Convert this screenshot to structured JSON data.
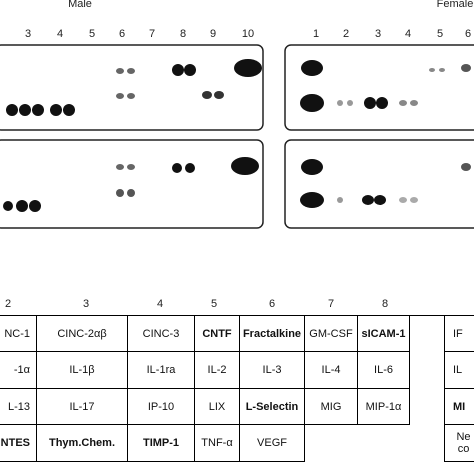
{
  "header": {
    "male": "Male",
    "female": "Female"
  },
  "blot_numbers_male": [
    "3",
    "4",
    "5",
    "6",
    "7",
    "8",
    "9",
    "10"
  ],
  "blot_numbers_female": [
    "1",
    "2",
    "3",
    "4",
    "5",
    "6"
  ],
  "table": {
    "header": [
      "2",
      "3",
      "4",
      "5",
      "6",
      "7",
      "8"
    ],
    "rows": [
      [
        {
          "text": "NC-1",
          "bold": false
        },
        {
          "text": "CINC-2αβ",
          "bold": false
        },
        {
          "text": "CINC-3",
          "bold": false
        },
        {
          "text": "CNTF",
          "bold": true
        },
        {
          "text": "Fractalkine",
          "bold": true
        },
        {
          "text": "GM-CSF",
          "bold": false
        },
        {
          "text": "sICAM-1",
          "bold": true
        },
        {
          "text": "IF",
          "bold": false
        }
      ],
      [
        {
          "text": "-1α",
          "bold": false
        },
        {
          "text": "IL-1β",
          "bold": false
        },
        {
          "text": "IL-1ra",
          "bold": false
        },
        {
          "text": "IL-2",
          "bold": false
        },
        {
          "text": "IL-3",
          "bold": false
        },
        {
          "text": "IL-4",
          "bold": false
        },
        {
          "text": "IL-6",
          "bold": false
        },
        {
          "text": "IL",
          "bold": false
        }
      ],
      [
        {
          "text": "L-13",
          "bold": false
        },
        {
          "text": "IL-17",
          "bold": false
        },
        {
          "text": "IP-10",
          "bold": false
        },
        {
          "text": "LIX",
          "bold": false
        },
        {
          "text": "L-Selectin",
          "bold": true
        },
        {
          "text": "MIG",
          "bold": false
        },
        {
          "text": "MIP-1α",
          "bold": false
        },
        {
          "text": "MI",
          "bold": true
        }
      ],
      [
        {
          "text": "NTES",
          "bold": true
        },
        {
          "text": "Thym.Chem.",
          "bold": true
        },
        {
          "text": "TIMP-1",
          "bold": true
        },
        {
          "text": "TNF-α",
          "bold": false
        },
        {
          "text": "VEGF",
          "bold": false
        }
      ]
    ],
    "last": {
      "text": "Ne co",
      "bold": false
    }
  }
}
